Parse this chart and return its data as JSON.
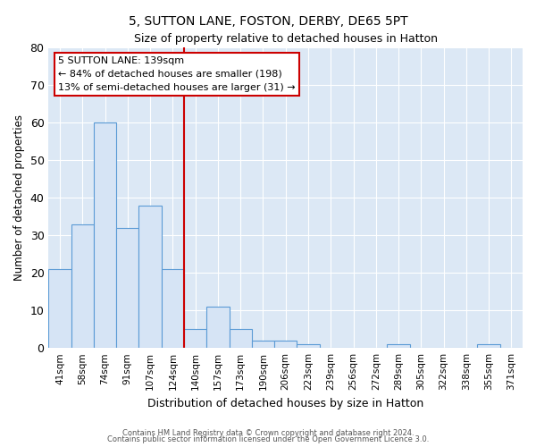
{
  "title": "5, SUTTON LANE, FOSTON, DERBY, DE65 5PT",
  "subtitle": "Size of property relative to detached houses in Hatton",
  "xlabel": "Distribution of detached houses by size in Hatton",
  "ylabel": "Number of detached properties",
  "categories": [
    "41sqm",
    "58sqm",
    "74sqm",
    "91sqm",
    "107sqm",
    "124sqm",
    "140sqm",
    "157sqm",
    "173sqm",
    "190sqm",
    "206sqm",
    "223sqm",
    "239sqm",
    "256sqm",
    "272sqm",
    "289sqm",
    "305sqm",
    "322sqm",
    "338sqm",
    "355sqm",
    "371sqm"
  ],
  "values": [
    21,
    33,
    60,
    32,
    38,
    21,
    5,
    11,
    5,
    2,
    2,
    1,
    0,
    0,
    0,
    1,
    0,
    0,
    0,
    1,
    0
  ],
  "bar_color": "#d6e4f5",
  "bar_edge_color": "#5b9bd5",
  "reference_line_x": 6,
  "reference_line_label": "5 SUTTON LANE: 139sqm",
  "annotation_line1": "← 84% of detached houses are smaller (198)",
  "annotation_line2": "13% of semi-detached houses are larger (31) →",
  "annotation_box_color": "#ffffff",
  "annotation_box_edge": "#cc0000",
  "ref_line_color": "#cc0000",
  "background_color": "#dce8f5",
  "grid_color": "#ffffff",
  "fig_background": "#ffffff",
  "ylim": [
    0,
    80
  ],
  "yticks": [
    0,
    10,
    20,
    30,
    40,
    50,
    60,
    70,
    80
  ],
  "footer_line1": "Contains HM Land Registry data © Crown copyright and database right 2024.",
  "footer_line2": "Contains public sector information licensed under the Open Government Licence 3.0."
}
